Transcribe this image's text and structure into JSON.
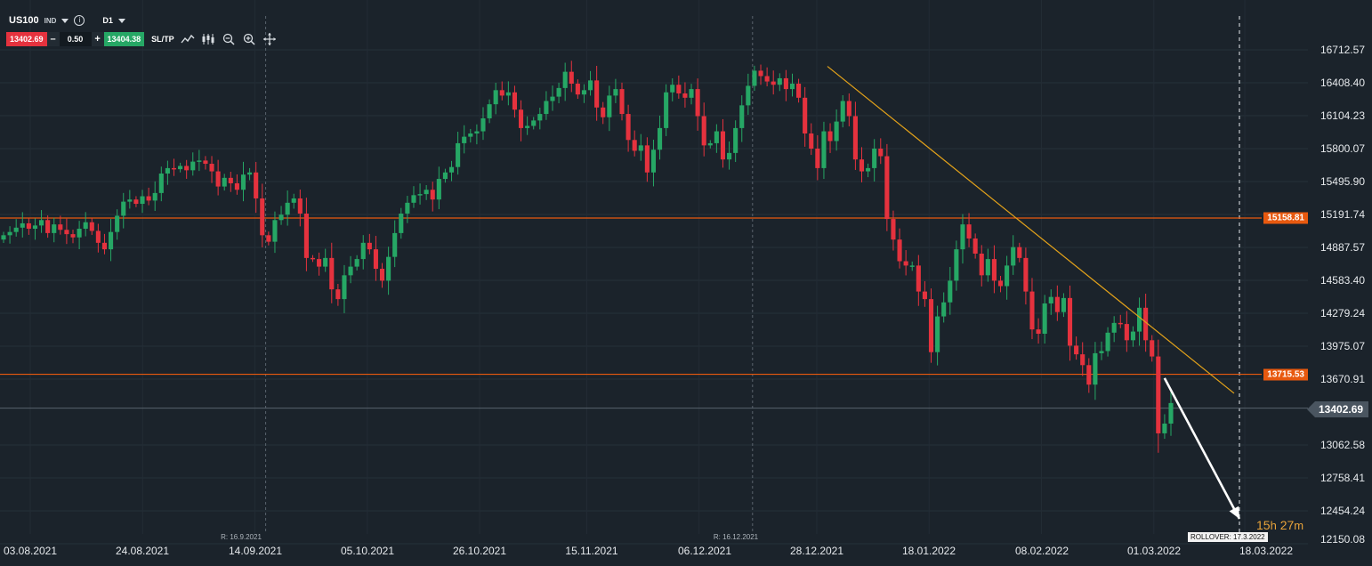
{
  "toolbar": {
    "symbol": "US100",
    "asset_class": "IND",
    "timeframe": "D1",
    "sell_price": "13402.69",
    "volume": "0.50",
    "buy_price": "13404.38",
    "sltp_label": "SL/TP",
    "minus_label": "–",
    "plus_label": "+",
    "icons": [
      "line-chart-icon",
      "candlestick-icon",
      "zoom-out-icon",
      "zoom-in-icon",
      "crosshair-icon"
    ]
  },
  "chart_data": {
    "type": "candlestick",
    "symbol": "US100",
    "timeframe": "D1",
    "y_ticks": [
      "16712.57",
      "16408.40",
      "16104.23",
      "15800.07",
      "15495.90",
      "15191.74",
      "14887.57",
      "14583.40",
      "14279.24",
      "13975.07",
      "13670.91",
      "13062.58",
      "12758.41",
      "12454.24",
      "12150.08"
    ],
    "x_ticks": [
      "03.08.2021",
      "24.08.2021",
      "14.09.2021",
      "05.10.2021",
      "26.10.2021",
      "15.11.2021",
      "06.12.2021",
      "28.12.2021",
      "18.01.2022",
      "08.02.2022",
      "01.03.2022",
      "18.03.2022"
    ],
    "ylim": [
      12150.08,
      16712.57
    ],
    "grid": true,
    "current_price": "13402.69",
    "levels": [
      {
        "label": "15158.81",
        "value": 15158.81,
        "color": "#e8590f"
      },
      {
        "label": "13715.53",
        "value": 13715.53,
        "color": "#e8590f"
      }
    ],
    "trendline": {
      "from": {
        "date": "30.12.2021",
        "value": 16560
      },
      "to": {
        "date": "16.03.2022",
        "value": 13540
      },
      "color": "#e3a21a"
    },
    "arrow": {
      "from": {
        "date": "03.03.2022",
        "value": 13680
      },
      "to": {
        "date": "17.03.2022",
        "value": 12380
      },
      "color": "#ffffff"
    },
    "rollover_markers": [
      {
        "label": "R: 16.9.2021",
        "date": "16.09.2021"
      },
      {
        "label": "R: 16.12.2021",
        "date": "16.12.2021"
      }
    ],
    "rollover_text": "ROLLOVER: 17.3.2022",
    "countdown": {
      "hours": "15",
      "h_unit": "h",
      "minutes": "27",
      "m_unit": "m"
    },
    "closes": [
      15000,
      15030,
      15070,
      15110,
      15060,
      15090,
      15140,
      15020,
      15100,
      15050,
      15010,
      14980,
      15060,
      15120,
      15040,
      14930,
      14870,
      15030,
      15180,
      15310,
      15330,
      15290,
      15360,
      15320,
      15390,
      15570,
      15620,
      15610,
      15640,
      15600,
      15680,
      15690,
      15660,
      15590,
      15450,
      15530,
      15480,
      15420,
      15560,
      15580,
      15340,
      15000,
      14940,
      15140,
      15190,
      15300,
      15340,
      15200,
      14790,
      14780,
      14710,
      14790,
      14500,
      14410,
      14630,
      14710,
      14780,
      14930,
      14870,
      14690,
      14580,
      14800,
      15020,
      15200,
      15300,
      15370,
      15380,
      15420,
      15330,
      15520,
      15580,
      15630,
      15850,
      15910,
      15940,
      15960,
      16080,
      16210,
      16340,
      16290,
      16320,
      16160,
      15990,
      16010,
      16060,
      16120,
      16240,
      16280,
      16360,
      16510,
      16400,
      16300,
      16340,
      16430,
      16180,
      16090,
      16290,
      16350,
      16120,
      15880,
      15780,
      15830,
      15580,
      15790,
      15990,
      16320,
      16390,
      16310,
      16270,
      16350,
      16100,
      15830,
      15850,
      15960,
      15700,
      15760,
      15990,
      16200,
      16380,
      16520,
      16470,
      16420,
      16390,
      16450,
      16350,
      16400,
      16270,
      15940,
      15800,
      15620,
      15960,
      15870,
      16050,
      16240,
      16100,
      15700,
      15590,
      15620,
      15800,
      15730,
      15150,
      14960,
      14760,
      14720,
      14720,
      14480,
      14410,
      13920,
      14250,
      14380,
      14580,
      14870,
      15100,
      14970,
      14830,
      14630,
      14780,
      14580,
      14530,
      14720,
      14890,
      14790,
      14480,
      14130,
      14090,
      14370,
      14430,
      14290,
      14420,
      13980,
      13900,
      13800,
      13620,
      13910,
      13930,
      14100,
      14190,
      14180,
      14030,
      14110,
      14330,
      14030,
      13880,
      13170,
      13260,
      13450
    ]
  }
}
